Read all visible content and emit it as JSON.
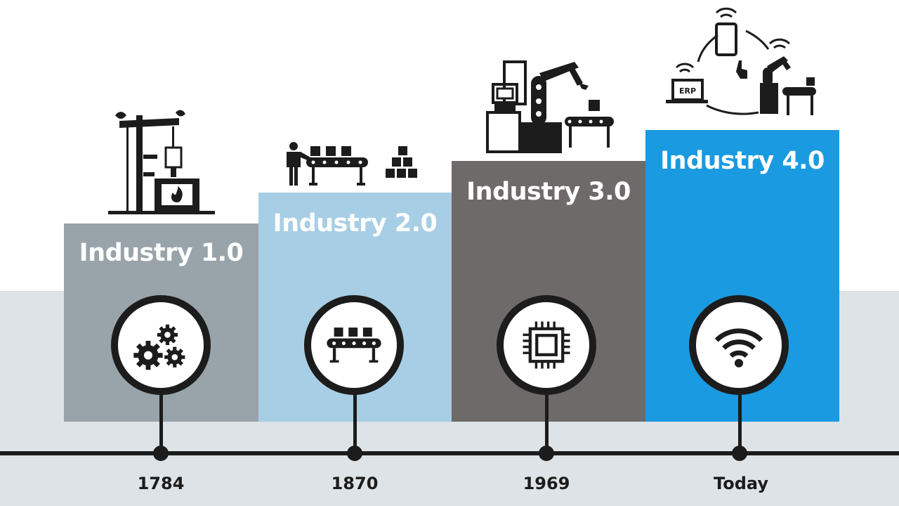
{
  "stages": [
    {
      "title": "Industry 1.0",
      "year": "1784",
      "color": "#98a3aa",
      "icon": "gears-icon",
      "illustration": "steam-engine-furnace-icon"
    },
    {
      "title": "Industry 2.0",
      "year": "1870",
      "color": "#a7cee4",
      "icon": "conveyor-belt-icon",
      "illustration": "assembly-line-worker-icon"
    },
    {
      "title": "Industry 3.0",
      "year": "1969",
      "color": "#6f6a6a",
      "icon": "microchip-icon",
      "illustration": "computer-robot-arm-icon"
    },
    {
      "title": "Industry 4.0",
      "year": "Today",
      "color": "#1a9ae0",
      "icon": "wifi-icon",
      "illustration": "connected-iot-robot-icon"
    }
  ],
  "illustration_labels": {
    "erp": "ERP"
  },
  "colors": {
    "ground": "#dde3e6",
    "line": "#1c1c1c"
  }
}
